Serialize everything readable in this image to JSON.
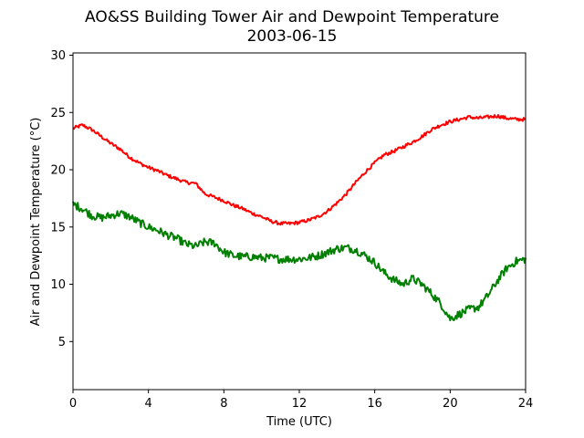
{
  "chart_data": {
    "type": "line",
    "title": "AO&SS Building Tower Air and Dewpoint Temperature",
    "subtitle": "2003-06-15",
    "xlabel": "Time (UTC)",
    "ylabel": "Air and Dewpoint Temperature (°C)",
    "xlim": [
      0,
      24
    ],
    "ylim": [
      0.8,
      30.2
    ],
    "xticks": [
      0,
      4,
      8,
      12,
      16,
      20,
      24
    ],
    "yticks": [
      5,
      10,
      15,
      20,
      25,
      30
    ],
    "grid": false,
    "legend": "none",
    "series": [
      {
        "color": "#ff0000",
        "x": [
          0,
          0.5,
          1,
          1.5,
          2,
          2.5,
          3,
          3.5,
          4,
          4.5,
          5,
          5.5,
          6,
          6.5,
          7,
          7.5,
          8,
          8.5,
          9,
          9.5,
          10,
          10.5,
          11,
          11.5,
          12,
          12.5,
          13,
          13.5,
          14,
          14.5,
          15,
          15.5,
          16,
          16.5,
          17,
          17.5,
          18,
          18.5,
          19,
          19.5,
          20,
          20.5,
          21,
          21.5,
          22,
          22.5,
          23,
          23.5,
          24
        ],
        "y": [
          23.6,
          23.9,
          23.5,
          22.9,
          22.3,
          21.8,
          21.1,
          20.6,
          20.2,
          19.9,
          19.5,
          19.2,
          18.9,
          18.8,
          17.9,
          17.6,
          17.3,
          16.9,
          16.6,
          16.2,
          15.9,
          15.5,
          15.3,
          15.3,
          15.4,
          15.6,
          15.9,
          16.4,
          17.1,
          17.9,
          18.9,
          19.8,
          20.6,
          21.3,
          21.6,
          22.0,
          22.4,
          22.9,
          23.5,
          23.9,
          24.2,
          24.4,
          24.6,
          24.5,
          24.6,
          24.7,
          24.5,
          24.4,
          24.4
        ],
        "noise": 0.15
      },
      {
        "color": "#008000",
        "x": [
          0,
          0.5,
          1,
          1.5,
          2,
          2.5,
          3,
          3.5,
          4,
          4.5,
          5,
          5.5,
          6,
          6.5,
          7,
          7.5,
          8,
          8.5,
          9,
          9.5,
          10,
          10.5,
          11,
          11.5,
          12,
          12.5,
          13,
          13.5,
          14,
          14.5,
          15,
          15.5,
          16,
          16.5,
          17,
          17.5,
          18,
          18.5,
          19,
          19.5,
          20,
          20.5,
          21,
          21.5,
          22,
          22.5,
          23,
          23.5,
          24
        ],
        "y": [
          17.0,
          16.6,
          16.0,
          15.8,
          16.0,
          16.2,
          15.9,
          15.4,
          15.0,
          14.7,
          14.3,
          14.0,
          13.5,
          13.3,
          13.7,
          13.6,
          12.8,
          12.5,
          12.4,
          12.4,
          12.3,
          12.3,
          12.2,
          12.2,
          12.2,
          12.3,
          12.5,
          12.8,
          13.1,
          13.2,
          13.0,
          12.5,
          11.9,
          11.0,
          10.4,
          10.0,
          10.5,
          10.0,
          9.2,
          8.3,
          7.0,
          7.4,
          7.8,
          8.0,
          9.0,
          10.3,
          11.4,
          12.0,
          12.2
        ],
        "noise": 0.35
      }
    ]
  }
}
